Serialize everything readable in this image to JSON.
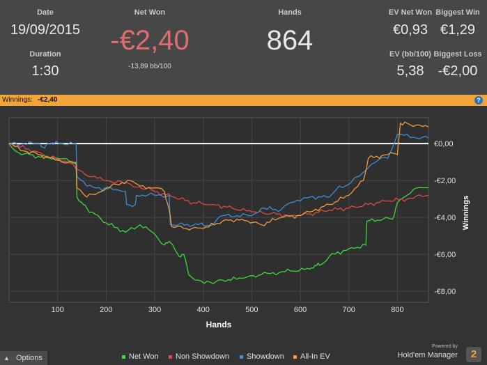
{
  "stats": {
    "date_label": "Date",
    "date": "19/09/2015",
    "duration_label": "Duration",
    "duration": "1:30",
    "net_won_label": "Net Won",
    "net_won": "-€2,40",
    "net_won_bb": "-13,89 bb/100",
    "hands_label": "Hands",
    "hands": "864",
    "ev_net_won_label": "EV Net Won",
    "ev_net_won": "€0,93",
    "biggest_win_label": "Biggest Win",
    "biggest_win": "€1,29",
    "ev_bb_label": "EV (bb/100)",
    "ev_bb": "5,38",
    "biggest_loss_label": "Biggest Loss",
    "biggest_loss": "-€2,00"
  },
  "bar": {
    "label": "Winnings:",
    "value": "-€2,40",
    "help": "?"
  },
  "footer": {
    "options": "Options",
    "powered_by": "Powered by",
    "brand": "Hold'em Manager",
    "logo": "2"
  },
  "colors": {
    "net_won": "#3fd83a",
    "non_showdown": "#e04848",
    "showdown": "#3d8fd8",
    "all_in_ev": "#f29a3a",
    "accent": "#f0a43a"
  },
  "chart_data": {
    "type": "line",
    "xlabel": "Hands",
    "ylabel": "Winnings",
    "xlim": [
      0,
      864
    ],
    "ylim": [
      -8.6,
      1.4
    ],
    "x_ticks": [
      100,
      200,
      300,
      400,
      500,
      600,
      700,
      800
    ],
    "y_ticks": [
      0,
      -2,
      -4,
      -6,
      -8
    ],
    "y_tick_labels": [
      "€0,00",
      "-€2,00",
      "-€4,00",
      "-€6,00",
      "-€8,00"
    ],
    "grid": true,
    "legend_position": "bottom",
    "series": [
      {
        "name": "Net Won",
        "color": "#3fd83a",
        "points": [
          [
            0,
            0
          ],
          [
            20,
            -0.5
          ],
          [
            60,
            -0.7
          ],
          [
            100,
            -0.8
          ],
          [
            138,
            -1.0
          ],
          [
            140,
            -2.9
          ],
          [
            150,
            -3.2
          ],
          [
            160,
            -3.5
          ],
          [
            200,
            -4.3
          ],
          [
            240,
            -4.8
          ],
          [
            270,
            -4.4
          ],
          [
            300,
            -4.9
          ],
          [
            320,
            -5.5
          ],
          [
            330,
            -5.3
          ],
          [
            350,
            -6.1
          ],
          [
            360,
            -6.0
          ],
          [
            370,
            -7.1
          ],
          [
            390,
            -7.4
          ],
          [
            420,
            -7.6
          ],
          [
            440,
            -7.4
          ],
          [
            480,
            -7.3
          ],
          [
            520,
            -7.1
          ],
          [
            580,
            -6.9
          ],
          [
            620,
            -6.8
          ],
          [
            630,
            -6.6
          ],
          [
            640,
            -6.6
          ],
          [
            660,
            -6.1
          ],
          [
            700,
            -5.7
          ],
          [
            735,
            -5.5
          ],
          [
            737,
            -4.2
          ],
          [
            770,
            -4.1
          ],
          [
            790,
            -4.1
          ],
          [
            800,
            -3.2
          ],
          [
            820,
            -2.8
          ],
          [
            840,
            -2.4
          ],
          [
            864,
            -2.4
          ]
        ]
      },
      {
        "name": "Non Showdown",
        "color": "#e04848",
        "points": [
          [
            0,
            0
          ],
          [
            40,
            -0.3
          ],
          [
            80,
            -0.7
          ],
          [
            120,
            -1.0
          ],
          [
            150,
            -1.5
          ],
          [
            170,
            -1.8
          ],
          [
            200,
            -2.0
          ],
          [
            250,
            -2.2
          ],
          [
            300,
            -2.6
          ],
          [
            340,
            -2.9
          ],
          [
            380,
            -3.2
          ],
          [
            420,
            -3.3
          ],
          [
            460,
            -3.5
          ],
          [
            500,
            -3.7
          ],
          [
            540,
            -3.8
          ],
          [
            580,
            -3.9
          ],
          [
            620,
            -3.8
          ],
          [
            660,
            -3.6
          ],
          [
            700,
            -3.5
          ],
          [
            740,
            -3.3
          ],
          [
            780,
            -3.1
          ],
          [
            820,
            -3.0
          ],
          [
            864,
            -2.8
          ]
        ]
      },
      {
        "name": "Showdown",
        "color": "#3d8fd8",
        "points": [
          [
            0,
            0
          ],
          [
            60,
            0
          ],
          [
            70,
            -0.2
          ],
          [
            80,
            0
          ],
          [
            138,
            0
          ],
          [
            140,
            -1.8
          ],
          [
            160,
            -2.3
          ],
          [
            180,
            -2.4
          ],
          [
            220,
            -2.5
          ],
          [
            240,
            -2.6
          ],
          [
            242,
            -3.3
          ],
          [
            260,
            -3.3
          ],
          [
            262,
            -2.8
          ],
          [
            330,
            -2.8
          ],
          [
            332,
            -4.4
          ],
          [
            420,
            -4.4
          ],
          [
            440,
            -3.9
          ],
          [
            500,
            -3.9
          ],
          [
            520,
            -3.5
          ],
          [
            560,
            -3.6
          ],
          [
            580,
            -3.2
          ],
          [
            600,
            -3.1
          ],
          [
            620,
            -2.9
          ],
          [
            660,
            -2.9
          ],
          [
            680,
            -2.3
          ],
          [
            700,
            -2.2
          ],
          [
            740,
            -1.3
          ],
          [
            760,
            -0.9
          ],
          [
            780,
            -0.8
          ],
          [
            800,
            0.5
          ],
          [
            820,
            0.5
          ],
          [
            840,
            0.3
          ],
          [
            864,
            0.3
          ]
        ]
      },
      {
        "name": "All-In EV",
        "color": "#f29a3a",
        "points": [
          [
            0,
            0
          ],
          [
            30,
            -0.4
          ],
          [
            60,
            -0.6
          ],
          [
            100,
            -0.9
          ],
          [
            138,
            -1.1
          ],
          [
            140,
            -2.4
          ],
          [
            160,
            -2.9
          ],
          [
            190,
            -2.6
          ],
          [
            220,
            -2.2
          ],
          [
            250,
            -2.0
          ],
          [
            270,
            -2.3
          ],
          [
            300,
            -2.4
          ],
          [
            320,
            -2.6
          ],
          [
            330,
            -3.6
          ],
          [
            335,
            -4.5
          ],
          [
            360,
            -4.6
          ],
          [
            400,
            -4.6
          ],
          [
            440,
            -4.2
          ],
          [
            480,
            -4.1
          ],
          [
            520,
            -4.4
          ],
          [
            560,
            -4.0
          ],
          [
            600,
            -3.9
          ],
          [
            620,
            -3.7
          ],
          [
            660,
            -3.3
          ],
          [
            700,
            -2.8
          ],
          [
            730,
            -2.0
          ],
          [
            740,
            -0.8
          ],
          [
            780,
            -0.6
          ],
          [
            800,
            -0.6
          ],
          [
            806,
            1.1
          ],
          [
            820,
            1.1
          ],
          [
            864,
            0.9
          ]
        ]
      }
    ]
  }
}
